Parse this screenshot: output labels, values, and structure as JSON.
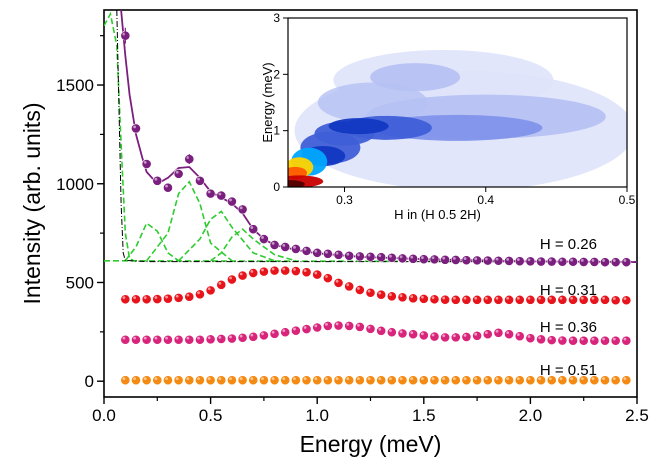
{
  "chart_data": [
    {
      "type": "scatter",
      "xlabel": "Energy (meV)",
      "ylabel": "Intensity (arb. units)",
      "xlim": [
        0.0,
        2.5
      ],
      "ylim": [
        -80,
        1880
      ],
      "x_ticks": [
        "0.0",
        "0.5",
        "1.0",
        "1.5",
        "2.0",
        "2.5"
      ],
      "y_ticks": [
        "0",
        "500",
        "1000",
        "1500"
      ],
      "colors": {
        "H026": "#7b1f7f",
        "H031": "#e8141c",
        "H036": "#d8247a",
        "H051": "#f58a12",
        "fit_green": "#2ecc2e",
        "fit_black": "#000000"
      },
      "series": [
        {
          "name": "H = 0.26",
          "x": [
            0.1,
            0.15,
            0.2,
            0.25,
            0.3,
            0.35,
            0.4,
            0.45,
            0.5,
            0.55,
            0.6,
            0.65,
            0.7,
            0.75,
            0.8,
            0.85,
            0.9,
            0.95,
            1.0,
            1.05,
            1.1,
            1.15,
            1.2,
            1.25,
            1.3,
            1.35,
            1.4,
            1.45,
            1.5,
            1.55,
            1.6,
            1.65,
            1.7,
            1.75,
            1.8,
            1.85,
            1.9,
            1.95,
            2.0,
            2.05,
            2.1,
            2.15,
            2.2,
            2.25,
            2.3,
            2.35,
            2.4,
            2.45
          ],
          "y": [
            1750,
            1280,
            1100,
            1015,
            980,
            1050,
            1125,
            1015,
            950,
            940,
            910,
            870,
            770,
            720,
            690,
            680,
            670,
            660,
            650,
            645,
            640,
            635,
            632,
            630,
            628,
            625,
            622,
            620,
            618,
            617,
            615,
            614,
            613,
            612,
            611,
            610,
            609,
            608,
            607,
            606,
            606,
            605,
            605,
            604,
            604,
            603,
            603,
            603
          ],
          "label": "H = 0.26"
        },
        {
          "name": "H = 0.31",
          "x": [
            0.1,
            0.15,
            0.2,
            0.25,
            0.3,
            0.35,
            0.4,
            0.45,
            0.5,
            0.55,
            0.6,
            0.65,
            0.7,
            0.75,
            0.8,
            0.85,
            0.9,
            0.95,
            1.0,
            1.05,
            1.1,
            1.15,
            1.2,
            1.25,
            1.3,
            1.35,
            1.4,
            1.45,
            1.5,
            1.55,
            1.6,
            1.65,
            1.7,
            1.75,
            1.8,
            1.85,
            1.9,
            1.95,
            2.0,
            2.05,
            2.1,
            2.15,
            2.2,
            2.25,
            2.3,
            2.35,
            2.4,
            2.45
          ],
          "y": [
            415,
            415,
            415,
            416,
            418,
            422,
            428,
            440,
            460,
            488,
            515,
            535,
            548,
            555,
            560,
            560,
            558,
            552,
            540,
            522,
            498,
            480,
            462,
            448,
            438,
            430,
            425,
            420,
            417,
            415,
            413,
            412,
            412,
            412,
            412,
            412,
            412,
            412,
            412,
            412,
            412,
            412,
            412,
            412,
            412,
            412,
            410,
            410
          ],
          "label": "H = 0.31"
        },
        {
          "name": "H = 0.36",
          "x": [
            0.1,
            0.15,
            0.2,
            0.25,
            0.3,
            0.35,
            0.4,
            0.45,
            0.5,
            0.55,
            0.6,
            0.65,
            0.7,
            0.75,
            0.8,
            0.85,
            0.9,
            0.95,
            1.0,
            1.05,
            1.1,
            1.15,
            1.2,
            1.25,
            1.3,
            1.35,
            1.4,
            1.45,
            1.5,
            1.55,
            1.6,
            1.65,
            1.7,
            1.75,
            1.8,
            1.85,
            1.9,
            1.95,
            2.0,
            2.05,
            2.1,
            2.15,
            2.2,
            2.25,
            2.3,
            2.35,
            2.4,
            2.45
          ],
          "y": [
            210,
            210,
            210,
            210,
            210,
            210,
            210,
            210,
            212,
            214,
            216,
            220,
            225,
            232,
            240,
            248,
            256,
            264,
            272,
            280,
            282,
            280,
            275,
            265,
            255,
            248,
            242,
            238,
            232,
            226,
            222,
            222,
            224,
            230,
            238,
            245,
            238,
            228,
            218,
            212,
            208,
            206,
            205,
            205,
            205,
            205,
            205,
            205
          ],
          "label": "H = 0.36"
        },
        {
          "name": "H = 0.51",
          "x": [
            0.1,
            0.15,
            0.2,
            0.25,
            0.3,
            0.35,
            0.4,
            0.45,
            0.5,
            0.55,
            0.6,
            0.65,
            0.7,
            0.75,
            0.8,
            0.85,
            0.9,
            0.95,
            1.0,
            1.05,
            1.1,
            1.15,
            1.2,
            1.25,
            1.3,
            1.35,
            1.4,
            1.45,
            1.5,
            1.55,
            1.6,
            1.65,
            1.7,
            1.75,
            1.8,
            1.85,
            1.9,
            1.95,
            2.0,
            2.05,
            2.1,
            2.15,
            2.2,
            2.25,
            2.3,
            2.35,
            2.4,
            2.45
          ],
          "y": [
            5,
            5,
            5,
            5,
            5,
            5,
            5,
            5,
            5,
            5,
            5,
            5,
            5,
            5,
            5,
            5,
            5,
            5,
            5,
            5,
            5,
            5,
            5,
            5,
            5,
            5,
            5,
            5,
            5,
            5,
            5,
            5,
            5,
            5,
            5,
            5,
            5,
            5,
            5,
            5,
            5,
            5,
            5,
            5,
            5,
            5,
            5,
            5
          ],
          "label": "H = 0.51"
        }
      ],
      "fit_curve": {
        "x": [
          0.08,
          0.1,
          0.12,
          0.15,
          0.18,
          0.2,
          0.25,
          0.3,
          0.35,
          0.4,
          0.45,
          0.5,
          0.55,
          0.6,
          0.65,
          0.7,
          0.75,
          0.8,
          0.9,
          1.0,
          1.2,
          1.5,
          2.0,
          2.5
        ],
        "y": [
          1880,
          1650,
          1450,
          1250,
          1130,
          1060,
          1000,
          1030,
          1080,
          1085,
          1030,
          960,
          930,
          900,
          850,
          770,
          720,
          690,
          665,
          648,
          630,
          618,
          607,
          603
        ]
      },
      "fit_components": [
        {
          "x": [
            0.0,
            0.03,
            0.06,
            0.08,
            0.1,
            0.12,
            0.15
          ],
          "y": [
            1800,
            1860,
            1700,
            1200,
            750,
            620,
            605
          ]
        },
        {
          "x": [
            0.1,
            0.15,
            0.2,
            0.25,
            0.3,
            0.35
          ],
          "y": [
            610,
            680,
            800,
            760,
            650,
            610
          ]
        },
        {
          "x": [
            0.2,
            0.3,
            0.35,
            0.4,
            0.45,
            0.5,
            0.6
          ],
          "y": [
            610,
            750,
            950,
            1010,
            900,
            700,
            610
          ]
        },
        {
          "x": [
            0.35,
            0.45,
            0.5,
            0.55,
            0.6,
            0.7,
            0.8
          ],
          "y": [
            610,
            720,
            820,
            860,
            780,
            650,
            610
          ]
        },
        {
          "x": [
            0.5,
            0.55,
            0.6,
            0.65,
            0.7,
            0.8,
            0.9
          ],
          "y": [
            610,
            650,
            730,
            770,
            720,
            640,
            610
          ]
        },
        {
          "x": [
            0.0,
            2.5
          ],
          "y": [
            610,
            605
          ]
        }
      ],
      "fit_black": {
        "x": [
          0.06,
          0.07,
          0.08,
          0.09,
          0.1,
          0.2,
          2.5
        ],
        "y": [
          1880,
          1400,
          900,
          650,
          612,
          606,
          605
        ]
      }
    },
    {
      "type": "heatmap",
      "xlabel": "H in (H 0.5 2H)",
      "ylabel": "Energy (meV)",
      "xlim": [
        0.26,
        0.5
      ],
      "ylim": [
        0,
        3
      ],
      "x_ticks": [
        "0.3",
        "0.4",
        "0.5"
      ],
      "y_ticks": [
        "0",
        "1",
        "2",
        "3"
      ],
      "colormap": [
        "#ffffff",
        "#dfe3fb",
        "#b5c0f4",
        "#7f93ea",
        "#3f5fd8",
        "#1238c2",
        "#00a6ff",
        "#ffd400",
        "#ff5a00",
        "#c80000"
      ]
    }
  ]
}
